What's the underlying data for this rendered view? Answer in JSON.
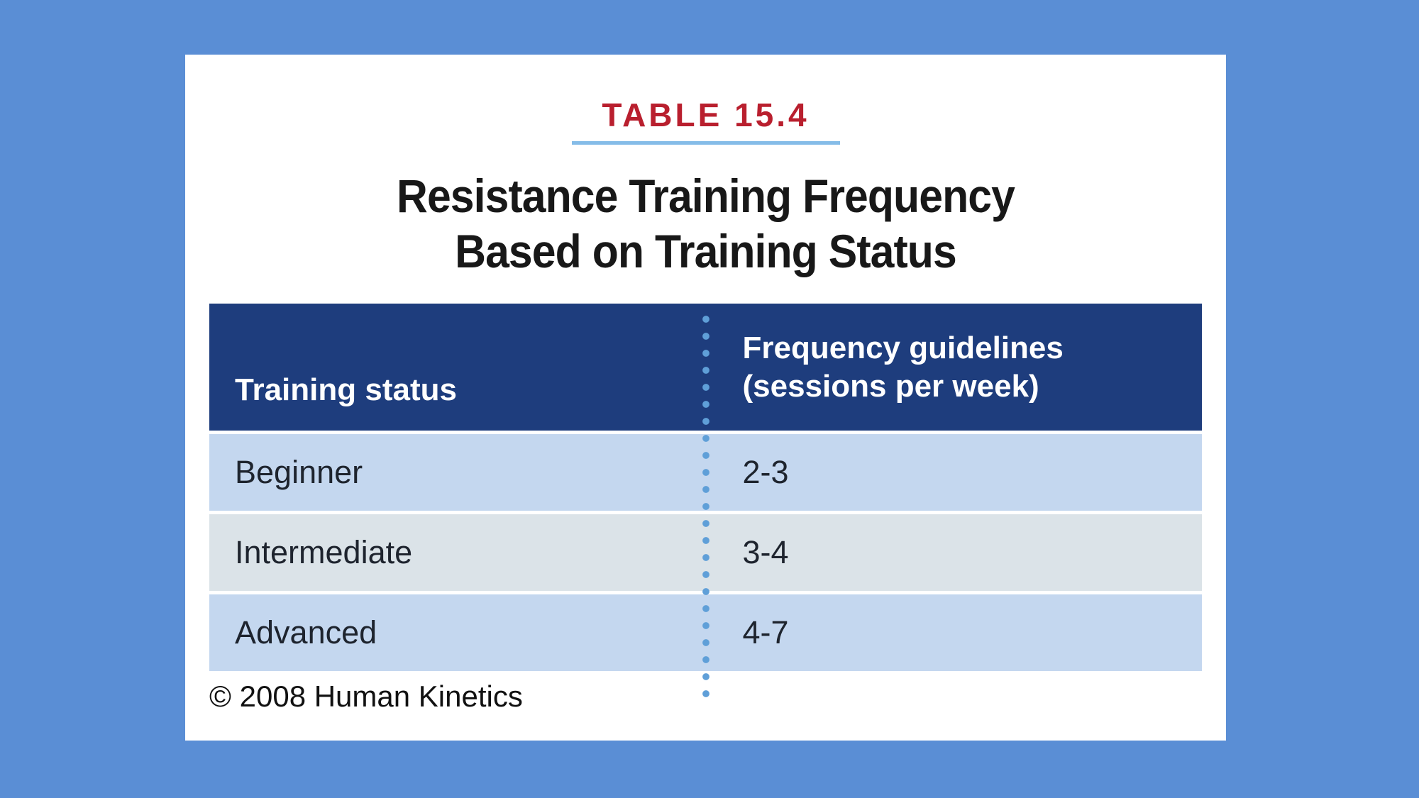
{
  "page": {
    "background_color": "#5a8ed5",
    "card_background": "#ffffff"
  },
  "header": {
    "table_label": "TABLE 15.4",
    "table_label_color": "#b91f2e",
    "underline_color": "#85bce8",
    "title_line1": "Resistance Training Frequency",
    "title_line2": "Based on Training Status"
  },
  "table": {
    "header_bg": "#1e3d7d",
    "header_text_color": "#ffffff",
    "col1_header": "Training status",
    "col2_header_line1": "Frequency guidelines",
    "col2_header_line2": "(sessions per week)",
    "row_color_odd": "#c4d7ef",
    "row_color_even": "#dbe3e8",
    "divider_dot_color": "#5f9fd8",
    "rows": [
      {
        "status": "Beginner",
        "frequency": "2-3"
      },
      {
        "status": "Intermediate",
        "frequency": "3-4"
      },
      {
        "status": "Advanced",
        "frequency": "4-7"
      }
    ]
  },
  "footer": {
    "copyright": "© 2008 Human Kinetics"
  },
  "chart_data": {
    "type": "table",
    "title": "Resistance Training Frequency Based on Training Status",
    "table_number": "TABLE 15.4",
    "columns": [
      "Training status",
      "Frequency guidelines (sessions per week)"
    ],
    "rows": [
      [
        "Beginner",
        "2-3"
      ],
      [
        "Intermediate",
        "3-4"
      ],
      [
        "Advanced",
        "4-7"
      ]
    ],
    "source": "© 2008 Human Kinetics"
  }
}
